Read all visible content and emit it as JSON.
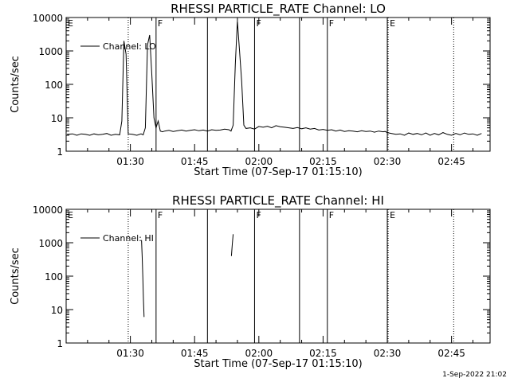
{
  "chart_data": [
    {
      "type": "line",
      "title": "RHESSI PARTICLE_RATE Channel: LO",
      "xlabel": "Start Time (07-Sep-17 01:15:10)",
      "ylabel": "Counts/sec",
      "y_scale": "log",
      "ylim": [
        1,
        10000
      ],
      "xlim_minutes": [
        0,
        99
      ],
      "x_ticks": [
        {
          "label": "01:30",
          "minute": 15
        },
        {
          "label": "01:45",
          "minute": 30
        },
        {
          "label": "02:00",
          "minute": 45
        },
        {
          "label": "02:15",
          "minute": 60
        },
        {
          "label": "02:30",
          "minute": 75
        },
        {
          "label": "02:45",
          "minute": 90
        }
      ],
      "y_ticks": [
        {
          "label": "1",
          "value": 1
        },
        {
          "label": "10",
          "value": 10
        },
        {
          "label": "100",
          "value": 100
        },
        {
          "label": "1000",
          "value": 1000
        },
        {
          "label": "10000",
          "value": 10000
        }
      ],
      "legend": {
        "label": "Channel: LO",
        "placement": "top-left"
      },
      "series": [
        {
          "name": "Channel: LO",
          "x": [
            0.2,
            1.5,
            2.5,
            3.5,
            4.5,
            5.5,
            6.5,
            7.5,
            8.5,
            9.5,
            10.5,
            11.5,
            12.5,
            13.0,
            13.5,
            14.0,
            14.5,
            15.5,
            16.5,
            17.5,
            18.0,
            18.5,
            19.0,
            19.5,
            20.0,
            20.5,
            21.0,
            21.5,
            22.0,
            22.5,
            23.0,
            24.0,
            25.0,
            26.0,
            27.0,
            28.0,
            29.0,
            30.0,
            31.0,
            32.0,
            33.0,
            34.0,
            35.0,
            36.0,
            37.0,
            38.0,
            38.5,
            39.0,
            39.5,
            40.0,
            40.5,
            41.0,
            41.5,
            42.0,
            43.0,
            44.0,
            45.0,
            46.0,
            47.0,
            48.0,
            49.0,
            50.0,
            51.0,
            52.0,
            53.0,
            54.0,
            55.0,
            56.0,
            57.0,
            58.0,
            59.0,
            60.0,
            61.0,
            62.0,
            63.0,
            64.0,
            65.0,
            66.0,
            67.0,
            68.0,
            69.0,
            70.0,
            71.0,
            72.0,
            73.0,
            74.0,
            74.5,
            75.0,
            76.0,
            77.0,
            78.0,
            79.0,
            80.0,
            81.0,
            82.0,
            83.0,
            84.0,
            85.0,
            86.0,
            87.0,
            88.0,
            89.0,
            90.0,
            91.0,
            92.0,
            93.0,
            94.0,
            95.0,
            96.0,
            97.0
          ],
          "values": [
            3.2,
            3.3,
            3.0,
            3.3,
            3.2,
            3.0,
            3.3,
            3.1,
            3.2,
            3.4,
            3.0,
            3.2,
            3.1,
            8.0,
            2000.0,
            800.0,
            3.3,
            3.2,
            3.0,
            3.3,
            3.1,
            5.0,
            1500.0,
            3000.0,
            200.0,
            10.0,
            5.0,
            8.0,
            4.0,
            3.8,
            4.0,
            4.2,
            3.9,
            4.1,
            4.3,
            4.0,
            4.2,
            4.4,
            4.1,
            4.3,
            4.0,
            4.4,
            4.2,
            4.3,
            4.6,
            4.4,
            4.0,
            6.0,
            400.0,
            8000.0,
            1000.0,
            120.0,
            6.0,
            4.8,
            5.0,
            4.6,
            5.5,
            5.2,
            5.6,
            5.0,
            5.8,
            5.4,
            5.2,
            5.0,
            4.8,
            5.1,
            4.7,
            5.0,
            4.6,
            4.8,
            4.3,
            4.5,
            4.2,
            4.4,
            4.0,
            4.3,
            3.9,
            4.1,
            4.0,
            3.8,
            4.1,
            3.9,
            4.0,
            3.7,
            4.0,
            3.8,
            3.9,
            3.6,
            3.4,
            3.2,
            3.3,
            3.0,
            3.5,
            3.2,
            3.4,
            3.1,
            3.5,
            3.0,
            3.4,
            3.1,
            3.6,
            3.2,
            3.0,
            3.4,
            3.1,
            3.5,
            3.2,
            3.3,
            3.0,
            3.4
          ]
        }
      ],
      "vlines_solid_minutes": [
        21,
        33,
        44,
        54.5,
        61,
        75
      ],
      "vlines_dotted_minutes": [
        14.5,
        75.2,
        90.5
      ],
      "flags": [
        {
          "label": "E",
          "minute": 0
        },
        {
          "label": "F",
          "minute": 21
        },
        {
          "label": "F",
          "minute": 44
        },
        {
          "label": "F",
          "minute": 61
        },
        {
          "label": "E",
          "minute": 75.2
        }
      ]
    },
    {
      "type": "line",
      "title": "RHESSI PARTICLE_RATE Channel: HI",
      "xlabel": "Start Time (07-Sep-17 01:15:10)",
      "ylabel": "Counts/sec",
      "y_scale": "log",
      "ylim": [
        1,
        10000
      ],
      "xlim_minutes": [
        0,
        99
      ],
      "x_ticks": [
        {
          "label": "01:30",
          "minute": 15
        },
        {
          "label": "01:45",
          "minute": 30
        },
        {
          "label": "02:00",
          "minute": 45
        },
        {
          "label": "02:15",
          "minute": 60
        },
        {
          "label": "02:30",
          "minute": 75
        },
        {
          "label": "02:45",
          "minute": 90
        }
      ],
      "y_ticks": [
        {
          "label": "1",
          "value": 1
        },
        {
          "label": "10",
          "value": 10
        },
        {
          "label": "100",
          "value": 100
        },
        {
          "label": "1000",
          "value": 1000
        },
        {
          "label": "10000",
          "value": 10000
        }
      ],
      "legend": {
        "label": "Channel: HI",
        "placement": "top-left"
      },
      "series": [
        {
          "name": "Channel: HI",
          "segments": [
            {
              "x": [
                17.6,
                17.75,
                17.9,
                18.05,
                18.2
              ],
              "values": [
                1200,
                400,
                100,
                20,
                6
              ]
            },
            {
              "x": [
                38.6,
                38.8,
                39.0
              ],
              "values": [
                400,
                900,
                1800
              ]
            }
          ]
        }
      ],
      "vlines_solid_minutes": [
        21,
        33,
        44,
        54.5,
        61,
        75
      ],
      "vlines_dotted_minutes": [
        14.5,
        75.2,
        90.5
      ],
      "flags": [
        {
          "label": "E",
          "minute": 0
        },
        {
          "label": "F",
          "minute": 21
        },
        {
          "label": "F",
          "minute": 44
        },
        {
          "label": "F",
          "minute": 61
        },
        {
          "label": "E",
          "minute": 75.2
        }
      ]
    }
  ],
  "footer": {
    "timestamp": "1-Sep-2022 21:02"
  }
}
